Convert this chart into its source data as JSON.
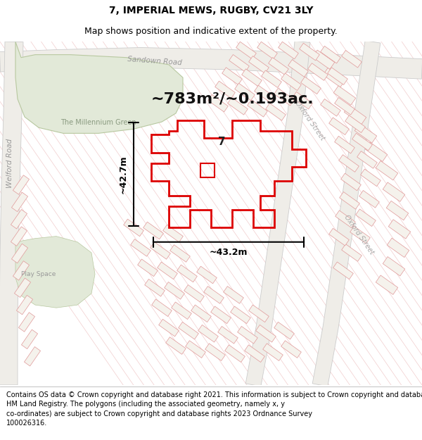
{
  "title": "7, IMPERIAL MEWS, RUGBY, CV21 3LY",
  "subtitle": "Map shows position and indicative extent of the property.",
  "footer": "Contains OS data © Crown copyright and database right 2021. This information is subject to Crown copyright and database rights 2023 and is reproduced with the permission of\nHM Land Registry. The polygons (including the associated geometry, namely x, y\nco-ordinates) are subject to Crown copyright and database rights 2023 Ordnance Survey\n100026316.",
  "area_text": "~783m²/~0.193ac.",
  "dim_h": "~42.7m",
  "dim_w": "~43.2m",
  "label_7": "7",
  "bg_color": "#f7f6f2",
  "green_color": "#e8ede2",
  "road_color": "#f0eee8",
  "hatch_color": "#e8aaaa",
  "property_color": "#dd0000",
  "title_fontsize": 10,
  "subtitle_fontsize": 9,
  "footer_fontsize": 7
}
